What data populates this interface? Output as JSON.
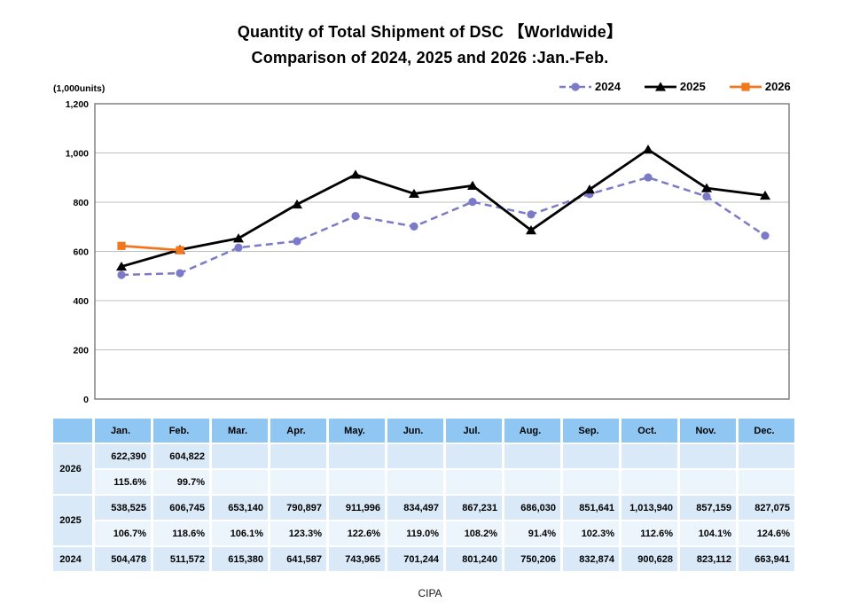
{
  "title": {
    "line1": "Quantity of Total Shipment of DSC 【Worldwide】",
    "line2": "Comparison of 2024, 2025 and 2026 :Jan.-Feb."
  },
  "chart": {
    "unit_label": "(1,000units)",
    "y_tick_labels": [
      "0",
      "200",
      "400",
      "600",
      "800",
      "1,000",
      "1,200"
    ]
  },
  "chart_data": {
    "type": "line",
    "title": "Quantity of Total Shipment of DSC (Worldwide)",
    "ylabel": "(1,000units)",
    "ylim": [
      0,
      1200
    ],
    "grid": true,
    "legend_position": "top-right",
    "categories": [
      "Jan.",
      "Feb.",
      "Mar.",
      "Apr.",
      "May.",
      "Jun.",
      "Jul.",
      "Aug.",
      "Sep.",
      "Oct.",
      "Nov.",
      "Dec."
    ],
    "series": [
      {
        "name": "2024",
        "color": "#7a7ac8",
        "line": "dashed",
        "marker": "circle",
        "values": [
          504.478,
          511.572,
          615.38,
          641.587,
          743.965,
          701.244,
          801.24,
          750.206,
          832.874,
          900.628,
          823.112,
          663.941
        ]
      },
      {
        "name": "2025",
        "color": "#000000",
        "line": "solid",
        "marker": "triangle",
        "values": [
          538.525,
          606.745,
          653.14,
          790.897,
          911.996,
          834.497,
          867.231,
          686.03,
          851.641,
          1013.94,
          857.159,
          827.075
        ]
      },
      {
        "name": "2026",
        "color": "#f2761b",
        "line": "solid",
        "marker": "square",
        "values": [
          622.39,
          604.822
        ]
      }
    ]
  },
  "table": {
    "columns": [
      "Jan.",
      "Feb.",
      "Mar.",
      "Apr.",
      "May.",
      "Jun.",
      "Jul.",
      "Aug.",
      "Sep.",
      "Oct.",
      "Nov.",
      "Dec."
    ],
    "groups": [
      {
        "label": "2026",
        "values": [
          "622,390",
          "604,822",
          "",
          "",
          "",
          "",
          "",
          "",
          "",
          "",
          "",
          ""
        ],
        "percents": [
          "115.6%",
          "99.7%",
          "",
          "",
          "",
          "",
          "",
          "",
          "",
          "",
          "",
          ""
        ]
      },
      {
        "label": "2025",
        "values": [
          "538,525",
          "606,745",
          "653,140",
          "790,897",
          "911,996",
          "834,497",
          "867,231",
          "686,030",
          "851,641",
          "1,013,940",
          "857,159",
          "827,075"
        ],
        "percents": [
          "106.7%",
          "118.6%",
          "106.1%",
          "123.3%",
          "122.6%",
          "119.0%",
          "108.2%",
          "91.4%",
          "102.3%",
          "112.6%",
          "104.1%",
          "124.6%"
        ]
      },
      {
        "label": "2024",
        "values": [
          "504,478",
          "511,572",
          "615,380",
          "641,587",
          "743,965",
          "701,244",
          "801,240",
          "750,206",
          "832,874",
          "900,628",
          "823,112",
          "663,941"
        ],
        "percents": null
      }
    ]
  },
  "footer": {
    "source": "CIPA"
  },
  "colors": {
    "grid": "#bfbfbf",
    "plot_border": "#808080",
    "header_cell": "#8fc7f2",
    "value_cell": "#d9e9f8",
    "percent_cell": "#edf5fc"
  }
}
